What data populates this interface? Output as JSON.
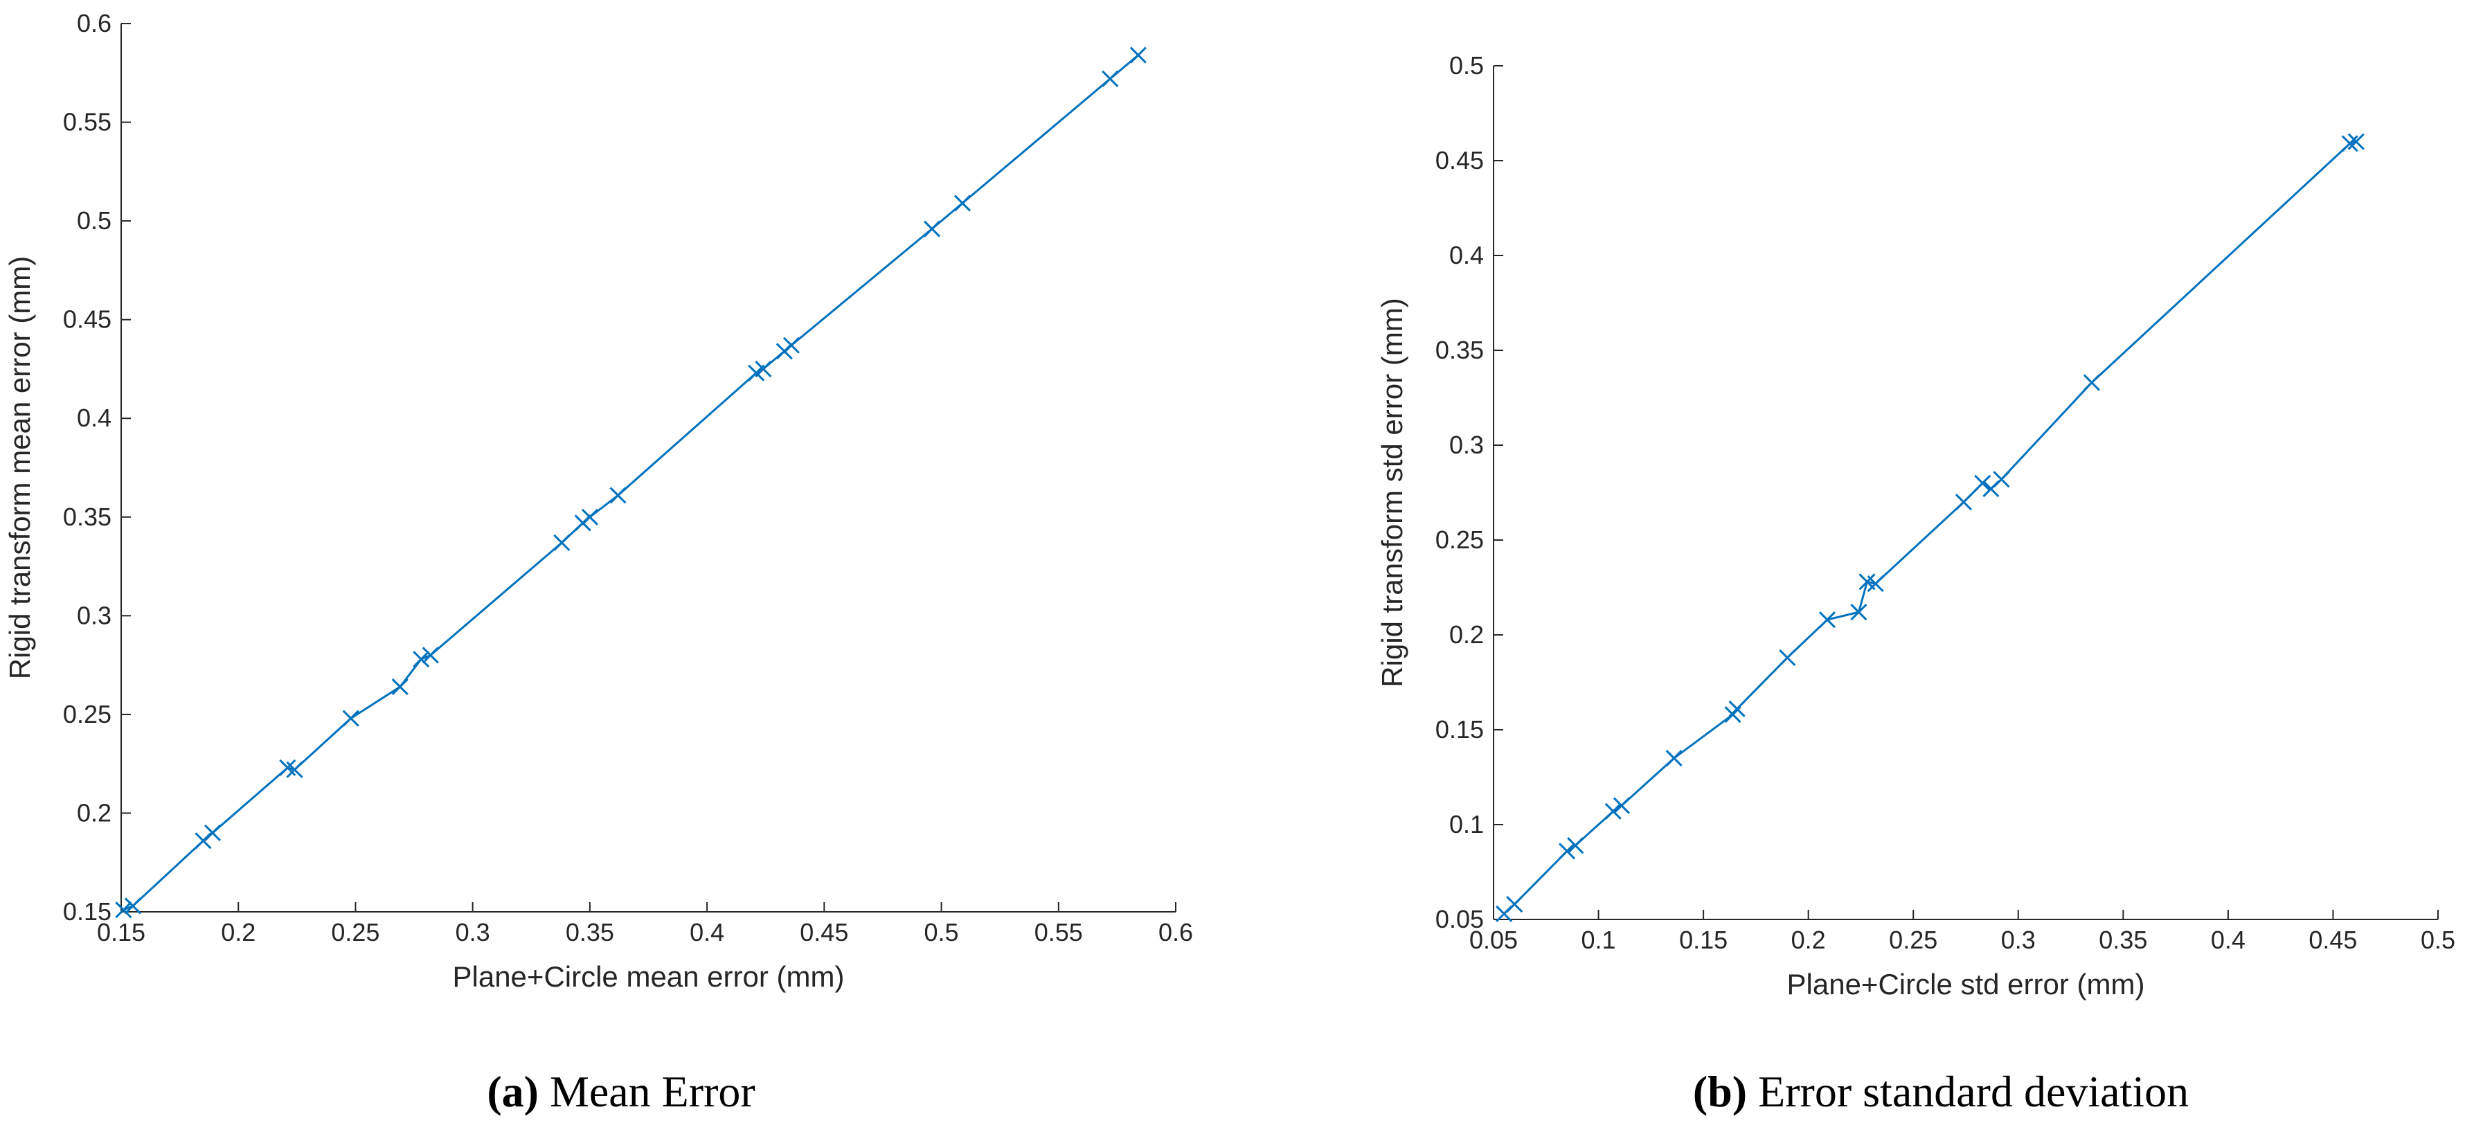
{
  "chart_data": [
    {
      "type": "line",
      "caption_label": "(a)",
      "caption": "Mean Error",
      "xlabel": "Plane+Circle mean error (mm)",
      "ylabel": "Rigid transform mean error (mm)",
      "color": "#0072bd",
      "marker": "x",
      "x": [
        0.151,
        0.155,
        0.185,
        0.189,
        0.221,
        0.224,
        0.248,
        0.269,
        0.278,
        0.282,
        0.338,
        0.347,
        0.35,
        0.362,
        0.421,
        0.424,
        0.433,
        0.436,
        0.496,
        0.509,
        0.572,
        0.584
      ],
      "values": [
        0.151,
        0.153,
        0.186,
        0.19,
        0.223,
        0.222,
        0.248,
        0.264,
        0.278,
        0.28,
        0.337,
        0.347,
        0.35,
        0.361,
        0.423,
        0.425,
        0.434,
        0.437,
        0.496,
        0.509,
        0.572,
        0.584
      ],
      "xlim": [
        0.15,
        0.6
      ],
      "ylim": [
        0.15,
        0.6
      ],
      "xticks": [
        0.15,
        0.2,
        0.25,
        0.3,
        0.35,
        0.4,
        0.45,
        0.5,
        0.55,
        0.6
      ],
      "yticks": [
        0.15,
        0.2,
        0.25,
        0.3,
        0.35,
        0.4,
        0.45,
        0.5,
        0.55,
        0.6
      ]
    },
    {
      "type": "line",
      "caption_label": "(b)",
      "caption": "Error standard deviation",
      "xlabel": "Plane+Circle std error (mm)",
      "ylabel": "Rigid transform std error (mm)",
      "color": "#0072bd",
      "marker": "x",
      "x": [
        0.055,
        0.06,
        0.085,
        0.089,
        0.107,
        0.111,
        0.136,
        0.164,
        0.166,
        0.19,
        0.209,
        0.224,
        0.228,
        0.232,
        0.274,
        0.283,
        0.287,
        0.292,
        0.335,
        0.458,
        0.461
      ],
      "values": [
        0.053,
        0.058,
        0.086,
        0.089,
        0.107,
        0.11,
        0.135,
        0.158,
        0.161,
        0.188,
        0.208,
        0.212,
        0.228,
        0.227,
        0.27,
        0.28,
        0.277,
        0.282,
        0.333,
        0.459,
        0.46
      ],
      "xlim": [
        0.05,
        0.5
      ],
      "ylim": [
        0.05,
        0.5
      ],
      "xticks": [
        0.05,
        0.1,
        0.15,
        0.2,
        0.25,
        0.3,
        0.35,
        0.4,
        0.45,
        0.5
      ],
      "yticks": [
        0.05,
        0.1,
        0.15,
        0.2,
        0.25,
        0.3,
        0.35,
        0.4,
        0.45,
        0.5
      ]
    }
  ]
}
